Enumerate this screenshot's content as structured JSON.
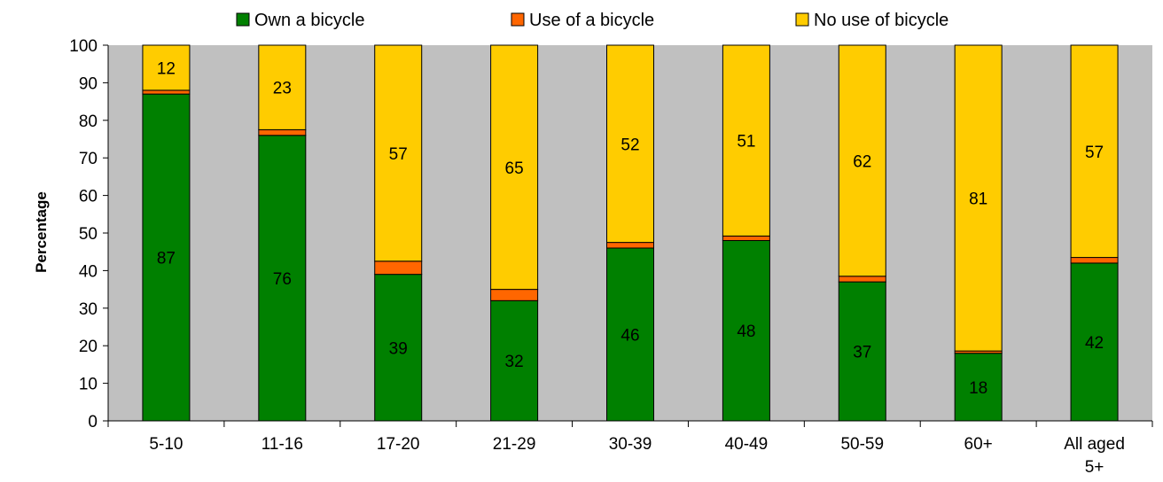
{
  "chart_data": {
    "type": "bar",
    "stacked": true,
    "title": "",
    "xlabel": "",
    "ylabel": "Percentage",
    "ylim": [
      0,
      100
    ],
    "yticks": [
      0,
      10,
      20,
      30,
      40,
      50,
      60,
      70,
      80,
      90,
      100
    ],
    "grid": false,
    "legend_position": "top",
    "plot_background": "#c0c0c0",
    "categories": [
      [
        "5-10"
      ],
      [
        "11-16"
      ],
      [
        "17-20"
      ],
      [
        "21-29"
      ],
      [
        "30-39"
      ],
      [
        "40-49"
      ],
      [
        "50-59"
      ],
      [
        "60+"
      ],
      [
        "All aged",
        "5+"
      ]
    ],
    "series": [
      {
        "name": "Own a bicycle",
        "color": "#008000",
        "values": [
          87,
          76,
          39,
          32,
          46,
          48,
          37,
          18,
          42
        ],
        "labels": [
          "87",
          "76",
          "39",
          "32",
          "46",
          "48",
          "37",
          "18",
          "42"
        ]
      },
      {
        "name": "Use of a bicycle",
        "color": "#ff6600",
        "values": [
          1,
          1.5,
          3.5,
          3,
          1.5,
          1.2,
          1.5,
          0.6,
          1.5
        ],
        "labels": []
      },
      {
        "name": "No use of bicycle",
        "color": "#ffcc00",
        "values": [
          12,
          22.5,
          57.5,
          65,
          52.5,
          50.8,
          61.5,
          81.4,
          56.5
        ],
        "labels": [
          "12",
          "23",
          "57",
          "65",
          "52",
          "51",
          "62",
          "81",
          "57"
        ]
      }
    ]
  }
}
